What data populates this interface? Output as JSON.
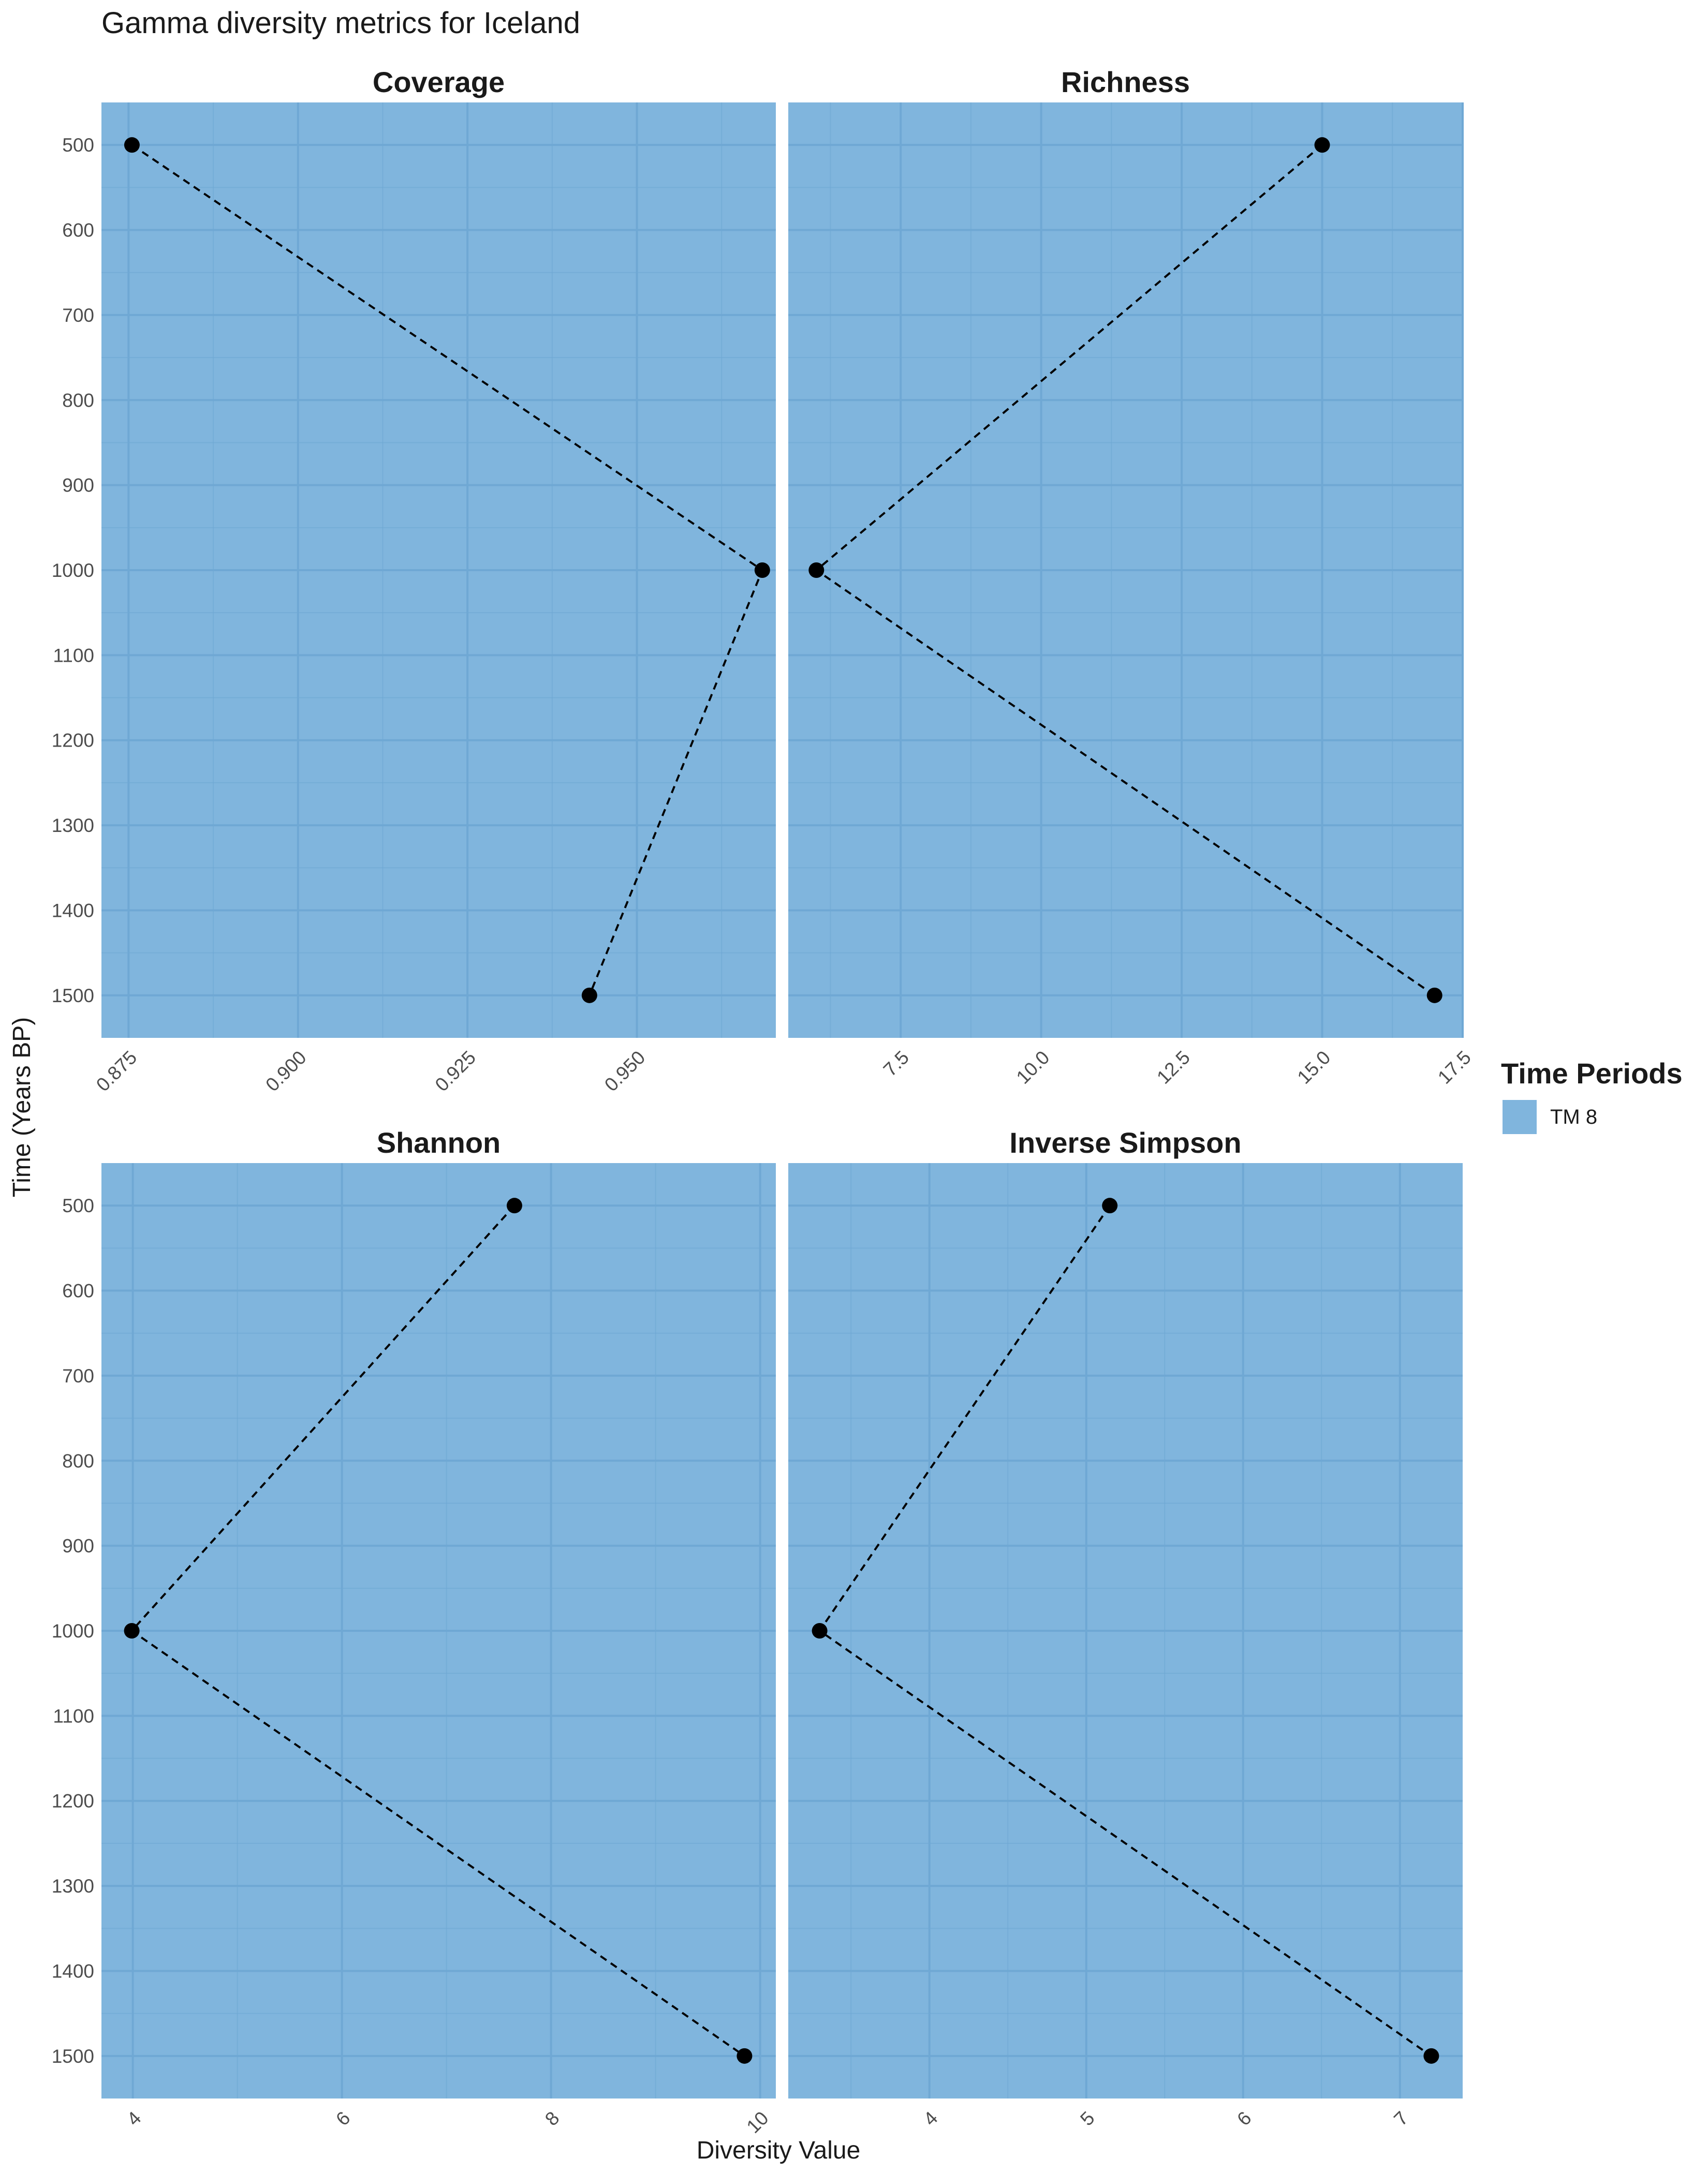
{
  "title": "Gamma diversity metrics for Iceland",
  "xlabel": "Diversity Value",
  "ylabel": "Time (Years BP)",
  "legend": {
    "title": "Time Periods",
    "items": [
      {
        "label": "TM 8",
        "color": "#80b5dd"
      }
    ]
  },
  "colors": {
    "panel_fill": "#80b5dd",
    "grid": "#6fa8d4",
    "points": "#000000",
    "line": "#000000"
  },
  "chart_data": [
    {
      "type": "line",
      "title": "Coverage",
      "x": [
        0.8755,
        0.9685,
        0.943
      ],
      "y": [
        500,
        1000,
        1500
      ],
      "xlim": [
        0.871,
        0.9705
      ],
      "xticks": [
        "0.875",
        "0.900",
        "0.925",
        "0.950"
      ],
      "xtick_values": [
        0.875,
        0.9,
        0.925,
        0.95
      ],
      "ylim": [
        450,
        1550
      ],
      "yticks": [
        500,
        600,
        700,
        800,
        900,
        1000,
        1100,
        1200,
        1300,
        1400,
        1500
      ],
      "y_reversed": true,
      "line_style": "dashed"
    },
    {
      "type": "line",
      "title": "Richness",
      "x": [
        15,
        6,
        17
      ],
      "y": [
        500,
        1000,
        1500
      ],
      "xlim": [
        5.5,
        17.5
      ],
      "xticks": [
        "7.5",
        "10.0",
        "12.5",
        "15.0",
        "17.5"
      ],
      "xtick_values": [
        7.5,
        10,
        12.5,
        15,
        17.5
      ],
      "ylim": [
        450,
        1550
      ],
      "yticks": [
        500,
        600,
        700,
        800,
        900,
        1000,
        1100,
        1200,
        1300,
        1400,
        1500
      ],
      "y_reversed": true,
      "line_style": "dashed"
    },
    {
      "type": "line",
      "title": "Shannon",
      "x": [
        7.65,
        3.99,
        9.85
      ],
      "y": [
        500,
        1000,
        1500
      ],
      "xlim": [
        3.7,
        10.15
      ],
      "xticks": [
        "4",
        "6",
        "8",
        "10"
      ],
      "xtick_values": [
        4,
        6,
        8,
        10
      ],
      "ylim": [
        450,
        1550
      ],
      "yticks": [
        500,
        600,
        700,
        800,
        900,
        1000,
        1100,
        1200,
        1300,
        1400,
        1500
      ],
      "y_reversed": true,
      "line_style": "dashed"
    },
    {
      "type": "line",
      "title": "Inverse Simpson",
      "x": [
        5.15,
        3.3,
        7.2
      ],
      "y": [
        500,
        1000,
        1500
      ],
      "xlim": [
        3.1,
        7.4
      ],
      "xticks": [
        "4",
        "5",
        "6",
        "7"
      ],
      "xtick_values": [
        4,
        5,
        6,
        7
      ],
      "ylim": [
        450,
        1550
      ],
      "yticks": [
        500,
        600,
        700,
        800,
        900,
        1000,
        1100,
        1200,
        1300,
        1400,
        1500
      ],
      "y_reversed": true,
      "line_style": "dashed"
    }
  ]
}
